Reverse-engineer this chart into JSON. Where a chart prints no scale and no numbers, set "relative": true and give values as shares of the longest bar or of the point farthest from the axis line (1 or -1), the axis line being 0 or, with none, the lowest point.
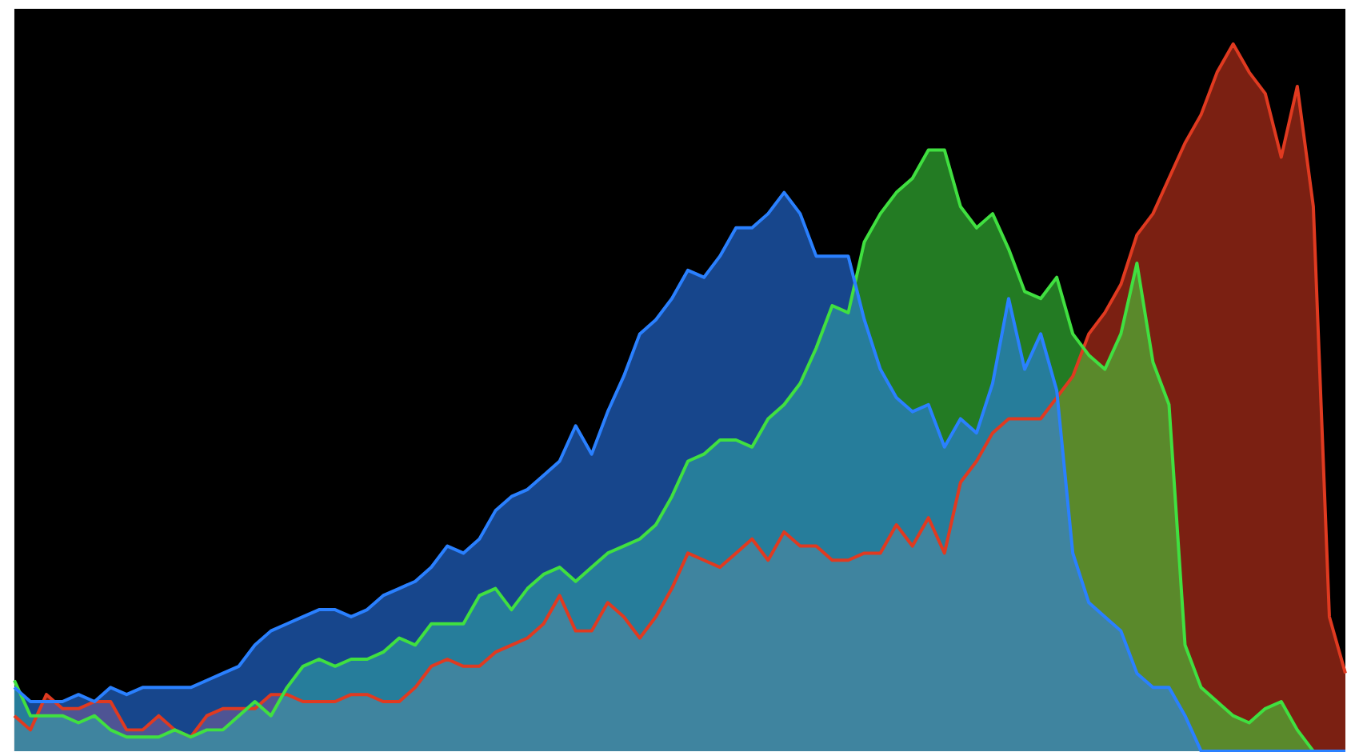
{
  "chart_data": {
    "type": "area",
    "relative": true,
    "categories": [
      null,
      null,
      null,
      null,
      null,
      null,
      null,
      null,
      null,
      null,
      null,
      null,
      null,
      null,
      null,
      null,
      null,
      null,
      null,
      null,
      null,
      null,
      null,
      null,
      null,
      null,
      null,
      null,
      null,
      null,
      null,
      null,
      null,
      null,
      null,
      null,
      null,
      null,
      null,
      null,
      null,
      null,
      null,
      null,
      null,
      null,
      null,
      null,
      null,
      null,
      null,
      null,
      null,
      null,
      null,
      null,
      null,
      null,
      null,
      null,
      null,
      null,
      null,
      null,
      null,
      null,
      null,
      null,
      null,
      null,
      null,
      null,
      null,
      null,
      null,
      null,
      null,
      null,
      null,
      null,
      null,
      null,
      null,
      null
    ],
    "series": [
      {
        "color": "#e03a20",
        "values": [
          0.05,
          0.03,
          0.08,
          0.06,
          0.06,
          0.07,
          0.07,
          0.03,
          0.03,
          0.05,
          0.03,
          0.02,
          0.05,
          0.06,
          0.06,
          0.06,
          0.08,
          0.08,
          0.07,
          0.07,
          0.07,
          0.08,
          0.08,
          0.07,
          0.07,
          0.09,
          0.12,
          0.13,
          0.12,
          0.12,
          0.14,
          0.15,
          0.16,
          0.18,
          0.22,
          0.17,
          0.17,
          0.21,
          0.19,
          0.16,
          0.19,
          0.23,
          0.28,
          0.27,
          0.26,
          0.28,
          0.3,
          0.27,
          0.31,
          0.29,
          0.29,
          0.27,
          0.27,
          0.28,
          0.28,
          0.32,
          0.29,
          0.33,
          0.28,
          0.38,
          0.41,
          0.45,
          0.47,
          0.47,
          0.47,
          0.5,
          0.53,
          0.59,
          0.62,
          0.66,
          0.73,
          0.76,
          0.81,
          0.86,
          0.9,
          0.96,
          1,
          0.96,
          0.93,
          0.84,
          0.94,
          0.77,
          0.19,
          0.11
        ]
      },
      {
        "color": "#40e040",
        "values": [
          0.1,
          0.05,
          0.05,
          0.05,
          0.04,
          0.05,
          0.03,
          0.02,
          0.02,
          0.02,
          0.03,
          0.02,
          0.03,
          0.03,
          0.05,
          0.07,
          0.05,
          0.09,
          0.12,
          0.13,
          0.12,
          0.13,
          0.13,
          0.14,
          0.16,
          0.15,
          0.18,
          0.18,
          0.18,
          0.22,
          0.23,
          0.2,
          0.23,
          0.25,
          0.26,
          0.24,
          0.26,
          0.28,
          0.29,
          0.3,
          0.32,
          0.36,
          0.41,
          0.42,
          0.44,
          0.44,
          0.43,
          0.47,
          0.49,
          0.52,
          0.57,
          0.63,
          0.62,
          0.72,
          0.76,
          0.79,
          0.81,
          0.85,
          0.85,
          0.77,
          0.74,
          0.76,
          0.71,
          0.65,
          0.64,
          0.67,
          0.59,
          0.56,
          0.54,
          0.59,
          0.69,
          0.55,
          0.49,
          0.15,
          0.09,
          0.07,
          0.05,
          0.04,
          0.06,
          0.07,
          0.03,
          0,
          0,
          0
        ]
      },
      {
        "color": "#2a80ff",
        "values": [
          0.09,
          0.07,
          0.07,
          0.07,
          0.08,
          0.07,
          0.09,
          0.08,
          0.09,
          0.09,
          0.09,
          0.09,
          0.1,
          0.11,
          0.12,
          0.15,
          0.17,
          0.18,
          0.19,
          0.2,
          0.2,
          0.19,
          0.2,
          0.22,
          0.23,
          0.24,
          0.26,
          0.29,
          0.28,
          0.3,
          0.34,
          0.36,
          0.37,
          0.39,
          0.41,
          0.46,
          0.42,
          0.48,
          0.53,
          0.59,
          0.61,
          0.64,
          0.68,
          0.67,
          0.7,
          0.74,
          0.74,
          0.76,
          0.79,
          0.76,
          0.7,
          0.7,
          0.7,
          0.61,
          0.54,
          0.5,
          0.48,
          0.49,
          0.43,
          0.47,
          0.45,
          0.52,
          0.64,
          0.54,
          0.59,
          0.51,
          0.28,
          0.21,
          0.19,
          0.17,
          0.11,
          0.09,
          0.09,
          0.05,
          0,
          0,
          0,
          0,
          0,
          0,
          0,
          0,
          0,
          0
        ]
      }
    ]
  }
}
